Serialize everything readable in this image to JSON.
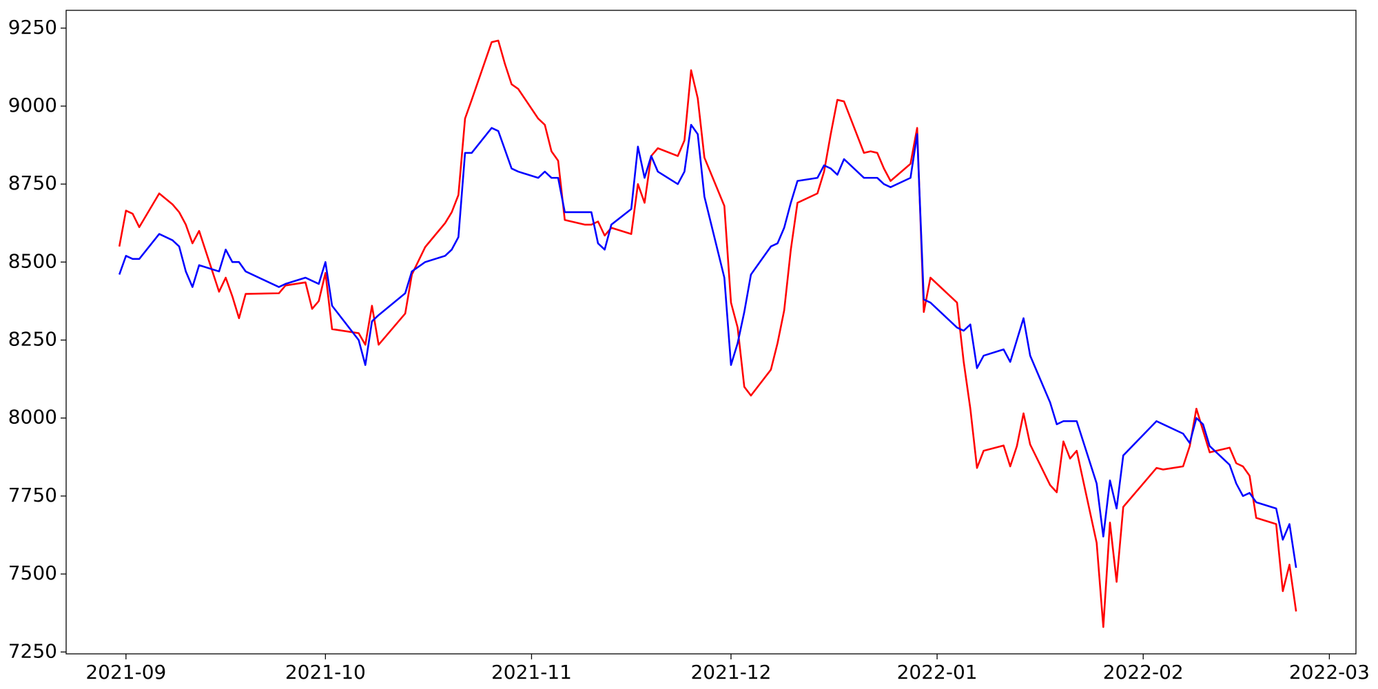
{
  "chart_data": {
    "type": "line",
    "x": [
      "2021-08-31",
      "2021-09-01",
      "2021-09-02",
      "2021-09-03",
      "2021-09-06",
      "2021-09-08",
      "2021-09-09",
      "2021-09-10",
      "2021-09-11",
      "2021-09-12",
      "2021-09-15",
      "2021-09-16",
      "2021-09-17",
      "2021-09-18",
      "2021-09-19",
      "2021-09-24",
      "2021-09-25",
      "2021-09-28",
      "2021-09-29",
      "2021-09-30",
      "2021-10-01",
      "2021-10-02",
      "2021-10-06",
      "2021-10-07",
      "2021-10-08",
      "2021-10-09",
      "2021-10-13",
      "2021-10-14",
      "2021-10-16",
      "2021-10-19",
      "2021-10-20",
      "2021-10-21",
      "2021-10-22",
      "2021-10-23",
      "2021-10-26",
      "2021-10-27",
      "2021-10-28",
      "2021-10-29",
      "2021-10-30",
      "2021-11-02",
      "2021-11-03",
      "2021-11-04",
      "2021-11-05",
      "2021-11-06",
      "2021-11-09",
      "2021-11-10",
      "2021-11-11",
      "2021-11-12",
      "2021-11-13",
      "2021-11-16",
      "2021-11-17",
      "2021-11-18",
      "2021-11-19",
      "2021-11-20",
      "2021-11-23",
      "2021-11-24",
      "2021-11-25",
      "2021-11-26",
      "2021-11-27",
      "2021-11-30",
      "2021-12-01",
      "2021-12-02",
      "2021-12-03",
      "2021-12-04",
      "2021-12-07",
      "2021-12-08",
      "2021-12-09",
      "2021-12-10",
      "2021-12-11",
      "2021-12-14",
      "2021-12-15",
      "2021-12-16",
      "2021-12-17",
      "2021-12-18",
      "2021-12-21",
      "2021-12-22",
      "2021-12-23",
      "2021-12-24",
      "2021-12-25",
      "2021-12-28",
      "2021-12-29",
      "2021-12-30",
      "2021-12-31",
      "2022-01-04",
      "2022-01-05",
      "2022-01-06",
      "2022-01-07",
      "2022-01-08",
      "2022-01-11",
      "2022-01-12",
      "2022-01-13",
      "2022-01-14",
      "2022-01-15",
      "2022-01-18",
      "2022-01-19",
      "2022-01-20",
      "2022-01-21",
      "2022-01-22",
      "2022-01-25",
      "2022-01-26",
      "2022-01-27",
      "2022-01-28",
      "2022-01-29",
      "2022-02-03",
      "2022-02-04",
      "2022-02-07",
      "2022-02-08",
      "2022-02-09",
      "2022-02-10",
      "2022-02-11",
      "2022-02-14",
      "2022-02-15",
      "2022-02-16",
      "2022-02-17",
      "2022-02-18",
      "2022-02-21",
      "2022-02-22",
      "2022-02-23",
      "2022-02-24"
    ],
    "series": [
      {
        "color": "#ff0000",
        "values": [
          8550,
          8665,
          8655,
          8612,
          8720,
          8685,
          8660,
          8620,
          8560,
          8600,
          8405,
          8450,
          8390,
          8320,
          8398,
          8400,
          8425,
          8435,
          8350,
          8375,
          8465,
          8285,
          8272,
          8235,
          8360,
          8235,
          8335,
          8460,
          8548,
          8625,
          8660,
          8715,
          8960,
          9020,
          9205,
          9210,
          9135,
          9070,
          9055,
          8960,
          8940,
          8855,
          8825,
          8635,
          8620,
          8620,
          8630,
          8585,
          8610,
          8590,
          8750,
          8690,
          8840,
          8865,
          8840,
          8890,
          9115,
          9025,
          8835,
          8680,
          8370,
          8290,
          8100,
          8072,
          8155,
          8240,
          8345,
          8540,
          8690,
          8720,
          8790,
          8910,
          9020,
          9015,
          8850,
          8855,
          8850,
          8800,
          8760,
          8815,
          8930,
          8340,
          8450,
          8370,
          8180,
          8030,
          7840,
          7895,
          7912,
          7845,
          7910,
          8015,
          7915,
          7785,
          7762,
          7925,
          7870,
          7895,
          7600,
          7330,
          7665,
          7475,
          7715,
          7840,
          7835,
          7845,
          7910,
          8030,
          7960,
          7890,
          7905,
          7855,
          7845,
          7815,
          7680,
          7660,
          7445,
          7530,
          7380
        ]
      },
      {
        "color": "#0000ff",
        "values": [
          8460,
          8520,
          8510,
          8510,
          8590,
          8570,
          8550,
          8470,
          8420,
          8490,
          8470,
          8540,
          8500,
          8500,
          8470,
          8420,
          8430,
          8450,
          8440,
          8430,
          8500,
          8360,
          8250,
          8170,
          8310,
          8330,
          8400,
          8470,
          8500,
          8520,
          8540,
          8580,
          8850,
          8850,
          8930,
          8920,
          8860,
          8800,
          8790,
          8770,
          8790,
          8770,
          8770,
          8660,
          8660,
          8660,
          8560,
          8540,
          8620,
          8670,
          8870,
          8770,
          8840,
          8790,
          8750,
          8790,
          8940,
          8910,
          8710,
          8450,
          8170,
          8240,
          8340,
          8460,
          8550,
          8560,
          8610,
          8690,
          8760,
          8770,
          8810,
          8800,
          8780,
          8830,
          8770,
          8770,
          8770,
          8750,
          8740,
          8770,
          8910,
          8380,
          8370,
          8290,
          8280,
          8300,
          8160,
          8200,
          8220,
          8180,
          8250,
          8320,
          8200,
          8050,
          7980,
          7990,
          7990,
          7990,
          7790,
          7620,
          7800,
          7710,
          7880,
          7990,
          7980,
          7950,
          7920,
          8000,
          7980,
          7910,
          7850,
          7790,
          7750,
          7760,
          7730,
          7710,
          7610,
          7660,
          7520
        ]
      }
    ],
    "xlim": [
      "2021-08-23",
      "2022-03-05"
    ],
    "xticks": [
      {
        "value": "2021-09-01",
        "label": "2021-09"
      },
      {
        "value": "2021-10-01",
        "label": "2021-10"
      },
      {
        "value": "2021-11-01",
        "label": "2021-11"
      },
      {
        "value": "2021-12-01",
        "label": "2021-12"
      },
      {
        "value": "2022-01-01",
        "label": "2022-01"
      },
      {
        "value": "2022-02-01",
        "label": "2022-02"
      },
      {
        "value": "2022-03-01",
        "label": "2022-03"
      }
    ],
    "ylim": [
      7244,
      9307
    ],
    "yticks": [
      7250,
      7500,
      7750,
      8000,
      8250,
      8500,
      8750,
      9000,
      9250
    ],
    "grid": false
  }
}
